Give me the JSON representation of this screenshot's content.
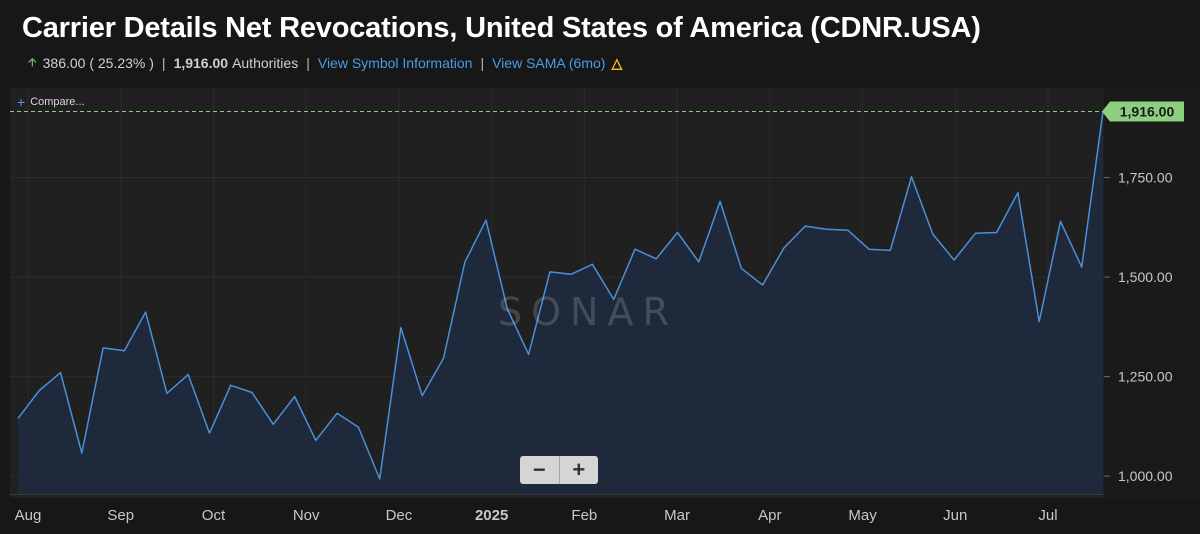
{
  "header": {
    "title": "Carrier Details Net Revocations, United States of America (CDNR.USA)",
    "change": "386.00 ( 25.23% )",
    "value": "1,916.00",
    "unit": "Authorities",
    "link_symbol": "View Symbol Information",
    "link_sama": "View SAMA (6mo)",
    "sama_icon": "sama-chart-icon"
  },
  "chart_controls": {
    "compare_label": "Compare...",
    "zoom_out": "−",
    "zoom_in": "+",
    "watermark": "SONAR"
  },
  "colors": {
    "line": "#4a8fd8",
    "area": "#1f2a3d",
    "last_value_badge": "#8ccf7e",
    "up_arrow": "#6fcf6f",
    "link": "#4a9bea"
  },
  "chart_data": {
    "type": "area",
    "title": "Carrier Details Net Revocations, United States of America (CDNR.USA)",
    "ylim": [
      955,
      1975
    ],
    "yticks": [
      1000,
      1250,
      1500,
      1750
    ],
    "ytick_labels": [
      "1,000.00",
      "1,250.00",
      "1,500.00",
      "1,750.00"
    ],
    "x_axis_labels": [
      "Aug",
      "Sep",
      "Oct",
      "Nov",
      "Dec",
      "2025",
      "Feb",
      "Mar",
      "Apr",
      "May",
      "Jun",
      "Jul"
    ],
    "last_value_label": "1,916.00",
    "grid": true,
    "series": [
      {
        "values": [
          1145,
          1215,
          1260,
          1058,
          1322,
          1315,
          1412,
          1208,
          1255,
          1108,
          1228,
          1210,
          1130,
          1200,
          1090,
          1158,
          1123,
          993,
          1373,
          1202,
          1296,
          1537,
          1643,
          1420,
          1306,
          1513,
          1507,
          1532,
          1444,
          1570,
          1546,
          1612,
          1538,
          1690,
          1522,
          1480,
          1573,
          1628,
          1620,
          1618,
          1570,
          1567,
          1752,
          1608,
          1543,
          1610,
          1612,
          1712,
          1388,
          1640,
          1525,
          1916
        ]
      }
    ]
  }
}
